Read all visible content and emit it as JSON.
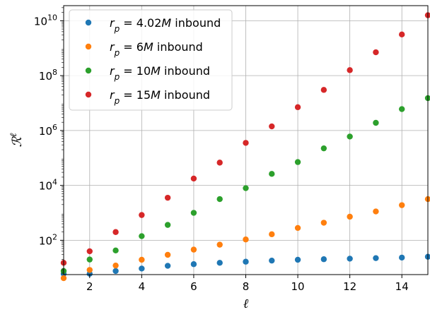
{
  "chart_data": {
    "type": "scatter",
    "title": "",
    "xlabel": "ℓ",
    "ylabel": "ℛ^ℓ",
    "xlim": [
      1,
      15
    ],
    "ylim_log10": [
      0.75,
      10.55
    ],
    "yscale": "log",
    "grid": true,
    "legend_position": "top-left",
    "x_ticks": [
      2,
      4,
      6,
      8,
      10,
      12,
      14
    ],
    "y_ticks": [
      {
        "base": "10",
        "exp": "2",
        "log10": 2
      },
      {
        "base": "10",
        "exp": "4",
        "log10": 4
      },
      {
        "base": "10",
        "exp": "6",
        "log10": 6
      },
      {
        "base": "10",
        "exp": "8",
        "log10": 8
      },
      {
        "base": "10",
        "exp": "10",
        "log10": 10
      }
    ],
    "x": [
      1,
      2,
      3,
      4,
      5,
      6,
      7,
      8,
      9,
      10,
      11,
      12,
      13,
      14,
      15
    ],
    "series": [
      {
        "name_prefix": "r",
        "name_sub": "p",
        "name_value": " = 4.02",
        "name_unit": "M",
        "name_suffix": " inbound",
        "color": "#1f77b4",
        "log10_values": [
          0.78,
          0.78,
          0.88,
          0.97,
          1.07,
          1.13,
          1.18,
          1.22,
          1.26,
          1.29,
          1.31,
          1.33,
          1.35,
          1.37,
          1.4
        ]
      },
      {
        "name_prefix": "r",
        "name_sub": "p",
        "name_value": " = 6",
        "name_unit": "M",
        "name_suffix": " inbound",
        "color": "#ff7f0e",
        "log10_values": [
          0.62,
          0.92,
          1.08,
          1.29,
          1.47,
          1.66,
          1.84,
          2.03,
          2.22,
          2.45,
          2.64,
          2.86,
          3.05,
          3.28,
          3.5
        ]
      },
      {
        "name_prefix": "r",
        "name_sub": "p",
        "name_value": " = 10",
        "name_unit": "M",
        "name_suffix": " inbound",
        "color": "#2ca02c",
        "log10_values": [
          0.88,
          1.3,
          1.63,
          2.15,
          2.56,
          3.0,
          3.5,
          3.9,
          4.42,
          4.85,
          5.35,
          5.78,
          6.28,
          6.78,
          7.18
        ]
      },
      {
        "name_prefix": "r",
        "name_sub": "p",
        "name_value": " = 15",
        "name_unit": "M",
        "name_suffix": " inbound",
        "color": "#d62728",
        "log10_values": [
          1.18,
          1.6,
          2.3,
          2.92,
          3.55,
          4.25,
          4.83,
          5.55,
          6.15,
          6.85,
          7.48,
          8.2,
          8.85,
          9.5,
          10.2
        ]
      }
    ]
  }
}
